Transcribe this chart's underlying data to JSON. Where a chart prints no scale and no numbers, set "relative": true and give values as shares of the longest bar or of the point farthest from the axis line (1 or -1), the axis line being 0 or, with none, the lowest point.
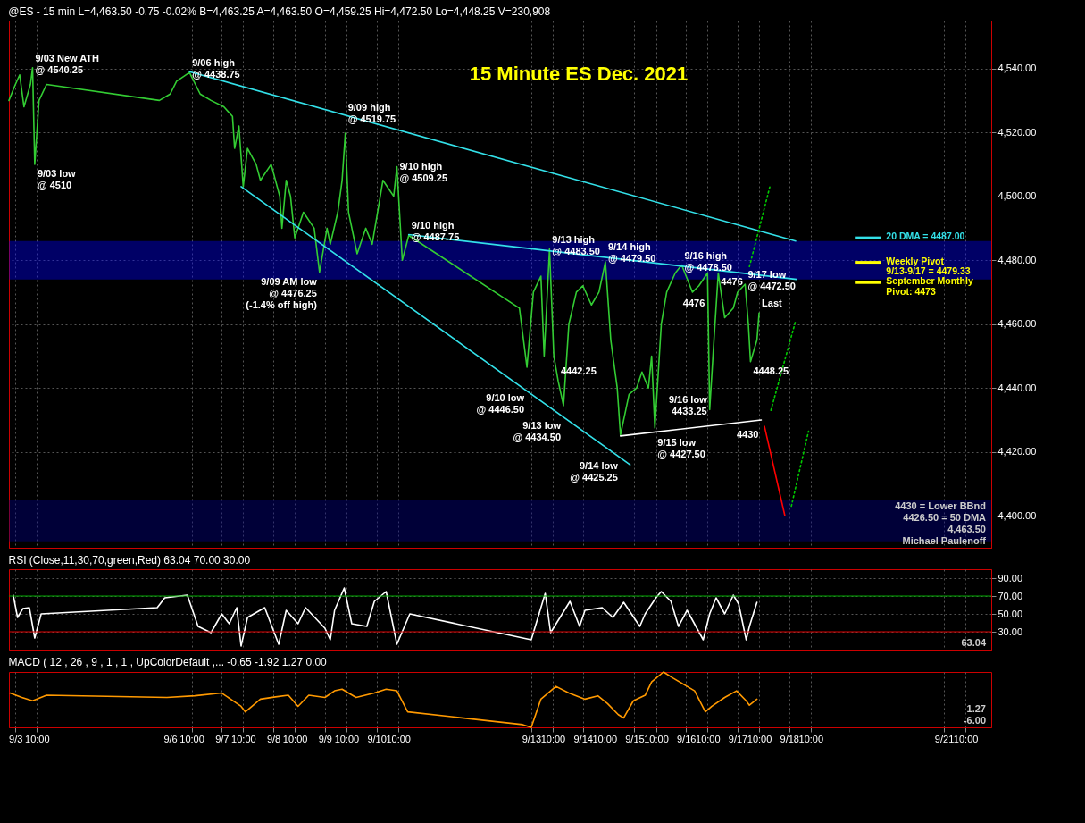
{
  "chart_data": [
    {
      "type": "line",
      "title": "15 Minute ES Dec. 2021",
      "subtitle": "@ES - 15 min  L=4,463.50 -0.75 -0.02%  B=4,463.25  A=4,463.50  O=4,459.25  Hi=4,472.50  Lo=4,448.25  V=230,908",
      "xlim": [
        "--09-02T21:00",
        "--09-21T22:00"
      ],
      "ylim": [
        4390,
        4555
      ],
      "xticks": [
        {
          "value": "--09-03T00:00",
          "label": "9/3"
        },
        {
          "value": "--09-03T10:00",
          "label": "10:00"
        },
        {
          "value": "--09-06T00:00",
          "label": "9/6"
        },
        {
          "value": "--09-06T10:00",
          "label": "10:00"
        },
        {
          "value": "--09-07T00:00",
          "label": "9/7"
        },
        {
          "value": "--09-07T10:00",
          "label": "10:00"
        },
        {
          "value": "--09-08T00:00",
          "label": "9/8"
        },
        {
          "value": "--09-08T10:00",
          "label": "10:00"
        },
        {
          "value": "--09-09T00:00",
          "label": "9/9"
        },
        {
          "value": "--09-09T10:00",
          "label": "10:00"
        },
        {
          "value": "--09-10T00:00",
          "label": "9/10"
        },
        {
          "value": "--09-10T10:00",
          "label": "10:00"
        },
        {
          "value": "--09-13T00:00",
          "label": "9/13"
        },
        {
          "value": "--09-13T10:00",
          "label": "10:00"
        },
        {
          "value": "--09-14T00:00",
          "label": "9/14"
        },
        {
          "value": "--09-14T10:00",
          "label": "10:00"
        },
        {
          "value": "--09-15T00:00",
          "label": "9/15"
        },
        {
          "value": "--09-15T10:00",
          "label": "10:00"
        },
        {
          "value": "--09-16T00:00",
          "label": "9/16"
        },
        {
          "value": "--09-16T10:00",
          "label": "10:00"
        },
        {
          "value": "--09-17T00:00",
          "label": "9/17"
        },
        {
          "value": "--09-17T10:00",
          "label": "10:00"
        },
        {
          "value": "--09-18T00:00",
          "label": "9/18"
        },
        {
          "value": "--09-18T10:00",
          "label": "10:00"
        },
        {
          "value": "--09-21T00:00",
          "label": "9/21"
        },
        {
          "value": "--09-21T10:00",
          "label": "10:00"
        }
      ],
      "yticks": [
        {
          "value": 4400,
          "label": "4,400.00"
        },
        {
          "value": 4420,
          "label": "4,420.00"
        },
        {
          "value": 4440,
          "label": "4,440.00"
        },
        {
          "value": 4460,
          "label": "4,460.00"
        },
        {
          "value": 4480,
          "label": "4,480.00"
        },
        {
          "value": 4500,
          "label": "4,500.00"
        },
        {
          "value": 4520,
          "label": "4,520.00"
        },
        {
          "value": 4540,
          "label": "4,540.00"
        }
      ],
      "grid": true,
      "tick_labels": "y",
      "series": [
        {
          "color": "#33cc33",
          "x": [
            "--09-02T21:00",
            "--09-03T00:00",
            "--09-03T02:00",
            "--09-03T04:00",
            "--09-03T07:00",
            "--09-03T08:00",
            "--09-03T09:00",
            "--09-03T11:00",
            "--09-03T14:30",
            "--09-05T19:00",
            "--09-06T00:00",
            "--09-06T03:00",
            "--09-06T09:00",
            "--09-06T14:00",
            "--09-06T19:00",
            "--09-07T01:00",
            "--09-07T05:00",
            "--09-07T06:00",
            "--09-07T08:00",
            "--09-07T10:00",
            "--09-07T12:00",
            "--09-07T16:00",
            "--09-07T18:00",
            "--09-07T23:00",
            "--09-08T03:00",
            "--09-08T04:00",
            "--09-08T06:00",
            "--09-08T08:00",
            "--09-08T10:00",
            "--09-08T14:00",
            "--09-08T19:00",
            "--09-08T21:30",
            "--09-09T01:00",
            "--09-09T02:30",
            "--09-09T06:00",
            "--09-09T08:00",
            "--09-09T09:30",
            "--09-09T11:00",
            "--09-09T15:00",
            "--09-09T19:00",
            "--09-09T22:00",
            "--09-10T00:30",
            "--09-10T03:00",
            "--09-10T06:00",
            "--09-10T08:00",
            "--09-10T09:30",
            "--09-10T12:00",
            "--09-10T15:00",
            "--09-12T18:30",
            "--09-12T22:00",
            "--09-13T01:00",
            "--09-13T04:30",
            "--09-13T06:00",
            "--09-13T08:30",
            "--09-13T10:30",
            "--09-13T12:30",
            "--09-13T15:00",
            "--09-13T17:30",
            "--09-13T21:00",
            "--09-14T00:00",
            "--09-14T04:00",
            "--09-14T07:30",
            "--09-14T10:30",
            "--09-14T13:00",
            "--09-14T16:00",
            "--09-14T17:30",
            "--09-14T21:30",
            "--09-15T01:00",
            "--09-15T03:30",
            "--09-15T06:30",
            "--09-15T08:00",
            "--09-15T09:30",
            "--09-15T12:30",
            "--09-15T15:00",
            "--09-15T19:00",
            "--09-15T22:00",
            "--09-16T03:00",
            "--09-16T06:00",
            "--09-16T10:00",
            "--09-16T11:00",
            "--09-16T13:00",
            "--09-16T15:00",
            "--09-16T18:00",
            "--09-16T22:00",
            "--09-17T00:00",
            "--09-17T03:30",
            "--09-17T05:00",
            "--09-17T06:00",
            "--09-17T09:00",
            "--09-17T10:00"
          ],
          "values": [
            4530,
            4535,
            4538,
            4528,
            4535,
            4540.25,
            4510,
            4530,
            4535,
            4530,
            4532,
            4536,
            4538.75,
            4532,
            4530,
            4528,
            4525,
            4515,
            4522,
            4503,
            4515,
            4510,
            4505,
            4510,
            4500,
            4490,
            4505,
            4500,
            4487,
            4495,
            4490,
            4476.25,
            4490,
            4485,
            4495,
            4505,
            4519.75,
            4495,
            4482,
            4490,
            4485,
            4495,
            4505,
            4502,
            4500,
            4509.25,
            4480,
            4487.75,
            4465,
            4446.5,
            4470,
            4475,
            4450,
            4483.5,
            4450,
            4442.25,
            4434.5,
            4460,
            4470,
            4472,
            4466,
            4470,
            4479.5,
            4455,
            4440,
            4425.25,
            4438,
            4440,
            4445,
            4440,
            4450,
            4427.5,
            4460,
            4470,
            4476,
            4478.5,
            4470,
            4472,
            4476,
            4433.25,
            4455,
            4476,
            4462,
            4465,
            4470,
            4472.5,
            4460,
            4448.25,
            4455,
            4463.5
          ]
        },
        {
          "color": "#33e0e8",
          "x": [
            "--09-06T09:00",
            "--09-18T03:00"
          ],
          "values": [
            4539,
            4486
          ]
        },
        {
          "color": "#33e0e8",
          "x": [
            "--09-07T09:00",
            "--09-14T22:00"
          ],
          "values": [
            4503,
            4416
          ]
        },
        {
          "color": "#33e0e8",
          "x": [
            "--09-10T15:00",
            "--09-18T03:30"
          ],
          "values": [
            4488,
            4474
          ]
        },
        {
          "color": "#ffffff",
          "x": [
            "--09-14T17:30",
            "--09-17T11:00"
          ],
          "values": [
            4425,
            4430
          ]
        },
        {
          "color": "#ff0000",
          "x": [
            "--09-17T12:30",
            "--09-17T22:00"
          ],
          "values": [
            4428,
            4400
          ]
        },
        {
          "color": "#00cc00",
          "line_style": "dotted",
          "x": [
            "--09-17T05:30",
            "--09-17T15:00"
          ],
          "values": [
            4478,
            4503
          ]
        },
        {
          "color": "#00cc00",
          "line_style": "dotted",
          "x": [
            "--09-17T15:30",
            "--09-18T03:00"
          ],
          "values": [
            4433,
            4461
          ]
        },
        {
          "color": "#00cc00",
          "line_style": "dotted",
          "x": [
            "--09-18T01:00",
            "--09-18T09:00"
          ],
          "values": [
            4403,
            4426.5
          ]
        }
      ],
      "bands": [
        {
          "axis": "y",
          "from": 4474,
          "to": 4486,
          "color": "#0000ff"
        },
        {
          "axis": "y",
          "from": 4392,
          "to": 4405,
          "color": "#00008b"
        }
      ],
      "ref_lines": [
        {
          "axis": "y",
          "value": 4487,
          "label": "20 DMA = 4487.00",
          "color": "#33e0e8"
        },
        {
          "axis": "y",
          "value": 4479.33,
          "label": "Weekly Pivot\n9/13-9/17 = 4479.33",
          "color": "#ffff00"
        },
        {
          "axis": "y",
          "value": 4473,
          "label": "September Monthly\nPivot: 4473",
          "color": "#ffff00"
        }
      ],
      "annotations": [
        {
          "text": "9/03 New ATH\n@ 4540.25",
          "x": "--09-03T08:00",
          "y": 4540.25
        },
        {
          "text": "9/06 high\n@ 4438.75",
          "x": "--09-06T09:00",
          "y": 4538.75
        },
        {
          "text": "9/03 low\n@ 4510",
          "x": "--09-03T09:00",
          "y": 4510
        },
        {
          "text": "9/09 high\n@ 4519.75",
          "x": "--09-09T09:30",
          "y": 4519.75
        },
        {
          "text": "9/10 high\n@ 4509.25",
          "x": "--09-10T09:30",
          "y": 4509.25
        },
        {
          "text": "9/10 high\n@ 4487.75",
          "x": "--09-10T15:00",
          "y": 4487.75
        },
        {
          "text": "9/09 AM low\n@ 4476.25\n(-1.4% off high)",
          "x": "--09-08T21:30",
          "y": 4476.25
        },
        {
          "text": "9/13 high\n@ 4483.50",
          "x": "--09-13T08:30",
          "y": 4483.5
        },
        {
          "text": "9/14 high\n@ 4479.50",
          "x": "--09-14T10:30",
          "y": 4479.5
        },
        {
          "text": "9/16 high\n@ 4478.50",
          "x": "--09-15T22:00",
          "y": 4478.5
        },
        {
          "text": "4476",
          "x": "--09-16T10:00",
          "y": 4476
        },
        {
          "text": "4476",
          "x": "--09-16T15:00",
          "y": 4476
        },
        {
          "text": "9/17 low\n@ 4472.50",
          "x": "--09-17T03:30",
          "y": 4472.5
        },
        {
          "text": "9/10 low\n@ 4446.50",
          "x": "--09-12T22:00",
          "y": 4446.5
        },
        {
          "text": "4442.25",
          "x": "--09-13T12:30",
          "y": 4442.25
        },
        {
          "text": "9/13 low\n@ 4434.50",
          "x": "--09-13T15:00",
          "y": 4434.5
        },
        {
          "text": "9/14 low\n@ 4425.25",
          "x": "--09-14T17:30",
          "y": 4425.25
        },
        {
          "text": "9/15 low\n@ 4427.50",
          "x": "--09-15T09:30",
          "y": 4427.5
        },
        {
          "text": "9/16 low\n4433.25",
          "x": "--09-16T11:00",
          "y": 4433.25
        },
        {
          "text": "4448.25",
          "x": "--09-17T06:00",
          "y": 4448.25
        },
        {
          "text": "4430",
          "x": "--09-17T11:00",
          "y": 4430
        },
        {
          "text": "Last",
          "x": "--09-17T10:00",
          "y": 4463.5
        },
        "4430 = Lower BBnd",
        "4426.50 = 50 DMA",
        "4,463.50",
        "Michael Paulenoff"
      ]
    },
    {
      "type": "line",
      "title": "RSI (Close,11,30,70,green,Red)  63.04  70.00  30.00",
      "xlim": [
        "--09-02T21:00",
        "--09-21T22:00"
      ],
      "ylim": [
        10,
        100
      ],
      "xticks": [
        {
          "value": "--09-03T00:00",
          "label": "9/3"
        },
        {
          "value": "--09-03T10:00",
          "label": "10:00"
        },
        {
          "value": "--09-06T00:00",
          "label": "9/6"
        },
        {
          "value": "--09-06T10:00",
          "label": "10:00"
        },
        {
          "value": "--09-07T00:00",
          "label": "9/7"
        },
        {
          "value": "--09-07T10:00",
          "label": "10:00"
        },
        {
          "value": "--09-08T00:00",
          "label": "9/8"
        },
        {
          "value": "--09-08T10:00",
          "label": "10:00"
        },
        {
          "value": "--09-09T00:00",
          "label": "9/9"
        },
        {
          "value": "--09-09T10:00",
          "label": "10:00"
        },
        {
          "value": "--09-10T00:00",
          "label": "9/10"
        },
        {
          "value": "--09-10T10:00",
          "label": "10:00"
        },
        {
          "value": "--09-13T00:00",
          "label": "9/13"
        },
        {
          "value": "--09-13T10:00",
          "label": "10:00"
        },
        {
          "value": "--09-14T00:00",
          "label": "9/14"
        },
        {
          "value": "--09-14T10:00",
          "label": "10:00"
        },
        {
          "value": "--09-15T00:00",
          "label": "9/15"
        },
        {
          "value": "--09-15T10:00",
          "label": "10:00"
        },
        {
          "value": "--09-16T00:00",
          "label": "9/16"
        },
        {
          "value": "--09-16T10:00",
          "label": "10:00"
        },
        {
          "value": "--09-17T00:00",
          "label": "9/17"
        },
        {
          "value": "--09-17T10:00",
          "label": "10:00"
        },
        {
          "value": "--09-18T00:00",
          "label": "9/18"
        },
        {
          "value": "--09-18T10:00",
          "label": "10:00"
        },
        {
          "value": "--09-21T00:00",
          "label": "9/21"
        },
        {
          "value": "--09-21T10:00",
          "label": "10:00"
        }
      ],
      "yticks": [
        {
          "value": 30,
          "label": "30.00"
        },
        {
          "value": 50,
          "label": "50.00"
        },
        {
          "value": 70,
          "label": "70.00"
        },
        {
          "value": 90,
          "label": "90.00"
        }
      ],
      "grid": true,
      "tick_labels": "y",
      "series": [
        {
          "color": "#ffffff",
          "x": [
            "--09-02T23:00",
            "--09-03T01:00",
            "--09-03T03:30",
            "--09-03T06:30",
            "--09-03T09:00",
            "--09-03T12:00",
            "--09-05T18:00",
            "--09-05T21:30",
            "--09-06T08:00",
            "--09-06T13:00",
            "--09-06T19:00",
            "--09-07T00:00",
            "--09-07T03:30",
            "--09-07T07:00",
            "--09-07T09:00",
            "--09-07T12:00",
            "--09-07T20:00",
            "--09-08T02:30",
            "--09-08T06:00",
            "--09-08T11:30",
            "--09-08T15:00",
            "--09-09T00:00",
            "--09-09T02:30",
            "--09-09T04:30",
            "--09-09T09:00",
            "--09-09T12:30",
            "--09-09T19:30",
            "--09-09T23:00",
            "--09-10T04:30",
            "--09-10T09:30",
            "--09-10T15:30",
            "--09-13T00:00",
            "--09-13T06:30",
            "--09-13T09:00",
            "--09-13T18:00",
            "--09-13T22:30",
            "--09-14T01:00",
            "--09-14T09:00",
            "--09-14T14:00",
            "--09-14T19:00",
            "--09-15T02:30",
            "--09-15T05:00",
            "--09-15T10:00",
            "--09-15T12:30",
            "--09-15T17:00",
            "--09-15T20:30",
            "--09-16T00:30",
            "--09-16T08:00",
            "--09-16T11:00",
            "--09-16T14:00",
            "--09-16T18:00",
            "--09-16T22:00",
            "--09-17T00:30",
            "--09-17T04:00",
            "--09-17T05:30",
            "--09-17T09:00"
          ],
          "values": [
            71,
            46,
            56,
            57,
            23,
            50,
            57,
            68,
            71,
            36,
            29,
            50,
            39,
            57,
            14,
            46,
            57,
            16,
            54,
            39,
            57,
            34,
            21,
            54,
            79,
            39,
            36,
            64,
            75,
            16,
            50,
            21,
            73,
            29,
            64,
            36,
            54,
            57,
            46,
            63,
            36,
            50,
            68,
            75,
            64,
            36,
            54,
            21,
            50,
            68,
            50,
            71,
            61,
            21,
            36,
            63
          ]
        }
      ],
      "ref_lines": [
        {
          "axis": "y",
          "value": 70,
          "color": "#00aa00"
        },
        {
          "axis": "y",
          "value": 30,
          "color": "#dd0000"
        }
      ],
      "annotations": [
        "63.04"
      ]
    },
    {
      "type": "line",
      "title": "MACD ( 12 , 26 , 9 , 1 , 1 , UpColorDefault ,...  -0.65  -1.92  1.27  0.00",
      "relative": true,
      "xlim": [
        "--09-02T21:00",
        "--09-21T22:00"
      ],
      "xticks": [
        {
          "value": "--09-03T00:00",
          "label": "9/3"
        },
        {
          "value": "--09-03T10:00",
          "label": "10:00"
        },
        {
          "value": "--09-06T00:00",
          "label": "9/6"
        },
        {
          "value": "--09-06T10:00",
          "label": "10:00"
        },
        {
          "value": "--09-07T00:00",
          "label": "9/7"
        },
        {
          "value": "--09-07T10:00",
          "label": "10:00"
        },
        {
          "value": "--09-08T00:00",
          "label": "9/8"
        },
        {
          "value": "--09-08T10:00",
          "label": "10:00"
        },
        {
          "value": "--09-09T00:00",
          "label": "9/9"
        },
        {
          "value": "--09-09T10:00",
          "label": "10:00"
        },
        {
          "value": "--09-10T00:00",
          "label": "9/10"
        },
        {
          "value": "--09-10T10:00",
          "label": "10:00"
        },
        {
          "value": "--09-13T00:00",
          "label": "9/13"
        },
        {
          "value": "--09-13T10:00",
          "label": "10:00"
        },
        {
          "value": "--09-14T00:00",
          "label": "9/14"
        },
        {
          "value": "--09-14T10:00",
          "label": "10:00"
        },
        {
          "value": "--09-15T00:00",
          "label": "9/15"
        },
        {
          "value": "--09-15T10:00",
          "label": "10:00"
        },
        {
          "value": "--09-16T00:00",
          "label": "9/16"
        },
        {
          "value": "--09-16T10:00",
          "label": "10:00"
        },
        {
          "value": "--09-17T00:00",
          "label": "9/17"
        },
        {
          "value": "--09-17T10:00",
          "label": "10:00"
        },
        {
          "value": "--09-18T00:00",
          "label": "9/18"
        },
        {
          "value": "--09-18T10:00",
          "label": "10:00"
        },
        {
          "value": "--09-21T00:00",
          "label": "9/21"
        },
        {
          "value": "--09-21T10:00",
          "label": "10:00"
        }
      ],
      "grid": "x",
      "tick_labels": "x",
      "series": [
        {
          "color": "#ff9900",
          "x": [
            "--09-02T21:30",
            "--09-03T03:00",
            "--09-03T08:00",
            "--09-03T14:30",
            "--09-05T22:30",
            "--09-06T11:30",
            "--09-07T00:00",
            "--09-07T09:00",
            "--09-07T11:00",
            "--09-07T18:00",
            "--09-08T01:00",
            "--09-08T07:00",
            "--09-08T11:30",
            "--09-08T16:30",
            "--09-09T00:00",
            "--09-09T04:30",
            "--09-09T08:00",
            "--09-09T14:30",
            "--09-09T23:00",
            "--09-10T04:30",
            "--09-10T09:30",
            "--09-10T14:30",
            "--09-12T20:00",
            "--09-13T00:00",
            "--09-13T04:30",
            "--09-13T11:30",
            "--09-13T17:30",
            "--09-14T01:00",
            "--09-14T07:00",
            "--09-14T11:30",
            "--09-14T16:30",
            "--09-14T19:00",
            "--09-14T23:30",
            "--09-15T05:00",
            "--09-15T08:00",
            "--09-15T13:30",
            "--09-15T18:00",
            "--09-16T00:30",
            "--09-16T04:00",
            "--09-16T09:00",
            "--09-16T12:00",
            "--09-16T18:00",
            "--09-16T23:30",
            "--09-17T04:00",
            "--09-17T05:30",
            "--09-17T09:00"
          ],
          "values": [
            0.62,
            0.54,
            0.48,
            0.58,
            0.54,
            0.57,
            0.62,
            0.38,
            0.28,
            0.51,
            0.55,
            0.58,
            0.38,
            0.58,
            0.54,
            0.66,
            0.69,
            0.54,
            0.62,
            0.69,
            0.66,
            0.28,
            0.05,
            0,
            0.51,
            0.74,
            0.62,
            0.51,
            0.57,
            0.43,
            0.23,
            0.17,
            0.48,
            0.58,
            0.82,
            1,
            0.89,
            0.74,
            0.66,
            0.28,
            0.38,
            0.54,
            0.66,
            0.48,
            0.4,
            0.51
          ]
        }
      ],
      "annotations": [
        "1.27",
        "-6.00"
      ]
    }
  ]
}
